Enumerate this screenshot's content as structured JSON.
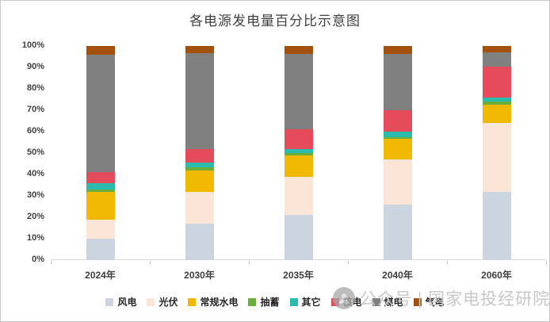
{
  "title": "各电源发电量百分比示意图",
  "watermark": {
    "icon": "person-circle-icon",
    "text": "公众号 | 国家电投经研院"
  },
  "chart_data": {
    "type": "bar",
    "stacked": true,
    "orientation": "vertical",
    "unit": "%",
    "title": "各电源发电量百分比示意图",
    "xlabel": "",
    "ylabel": "",
    "ylim": [
      0,
      100
    ],
    "ytick_step": 10,
    "ytick_labels": [
      "0%",
      "10%",
      "20%",
      "30%",
      "40%",
      "50%",
      "60%",
      "70%",
      "80%",
      "90%",
      "100%"
    ],
    "grid": false,
    "legend_position": "bottom",
    "categories": [
      "2024年",
      "2030年",
      "2035年",
      "2040年",
      "2060年"
    ],
    "series": [
      {
        "name": "风电",
        "color": "#ccd4e0",
        "values": [
          10,
          17,
          21,
          26,
          32
        ]
      },
      {
        "name": "光伏",
        "color": "#fbe5d6",
        "values": [
          9,
          15,
          18,
          21,
          32
        ]
      },
      {
        "name": "常规水电",
        "color": "#f0b800",
        "values": [
          13,
          10,
          10,
          9.5,
          8.5
        ]
      },
      {
        "name": "抽蓄",
        "color": "#6baf3a",
        "values": [
          1,
          1.5,
          1,
          1,
          1.5
        ]
      },
      {
        "name": "其它",
        "color": "#2bbbad",
        "values": [
          3,
          2,
          2,
          2.5,
          2
        ]
      },
      {
        "name": "核电",
        "color": "#e44c5c",
        "values": [
          5,
          6.5,
          9,
          10,
          14.5
        ]
      },
      {
        "name": "煤电",
        "color": "#808080",
        "values": [
          55,
          44.5,
          35.5,
          26.5,
          6.5
        ]
      },
      {
        "name": "气电",
        "color": "#a3520d",
        "values": [
          4,
          3.5,
          3.5,
          3.5,
          3
        ]
      }
    ]
  }
}
